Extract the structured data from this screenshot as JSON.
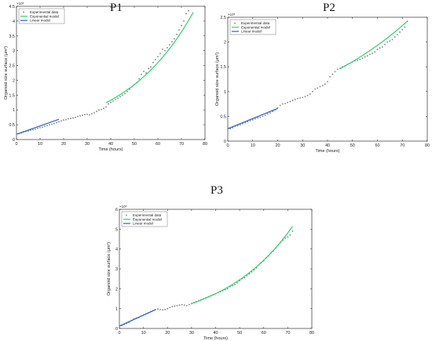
{
  "panels": [
    {
      "title": "P1"
    },
    {
      "title": "P2"
    },
    {
      "title": "P3"
    }
  ],
  "colors": {
    "experimental": "#7f7f7f",
    "exponential": "#2bd46b",
    "linear": "#2b5fd4"
  },
  "chart_data": [
    {
      "type": "scatter",
      "title": "P1",
      "xlabel": "Time (hours)",
      "ylabel": "Organoid size surface (μm²)",
      "y_exponent": "×10⁵",
      "xlim": [
        0,
        80
      ],
      "ylim": [
        0,
        4.5
      ],
      "xticks": [
        0,
        10,
        20,
        30,
        40,
        50,
        60,
        70,
        80
      ],
      "yticks": [
        0,
        0.5,
        1,
        1.5,
        2,
        2.5,
        3,
        3.5,
        4,
        4.5
      ],
      "legend": [
        "Experimental data",
        "Exponential model",
        "Linear model"
      ],
      "legend_position": "top-left",
      "series": [
        {
          "name": "Experimental data",
          "kind": "points",
          "x": [
            1,
            2,
            3,
            4,
            5,
            6,
            7,
            8,
            9,
            10,
            11,
            12,
            13,
            14,
            15,
            16,
            17,
            18,
            19,
            20,
            21,
            22,
            23,
            24,
            25,
            26,
            27,
            28,
            29,
            30,
            31,
            32,
            33,
            34,
            35,
            36,
            37,
            38,
            39,
            40,
            41,
            42,
            43,
            44,
            45,
            46,
            47,
            48,
            49,
            50,
            51,
            52,
            53,
            54,
            55,
            56,
            57,
            58,
            59,
            60,
            61,
            62,
            63,
            64,
            65,
            66,
            67,
            68,
            69,
            70,
            71,
            72,
            73
          ],
          "y": [
            0.2,
            0.22,
            0.25,
            0.27,
            0.29,
            0.31,
            0.33,
            0.35,
            0.38,
            0.4,
            0.42,
            0.45,
            0.47,
            0.5,
            0.52,
            0.55,
            0.57,
            0.6,
            0.63,
            0.66,
            0.67,
            0.7,
            0.71,
            0.73,
            0.75,
            0.78,
            0.8,
            0.82,
            0.84,
            0.85,
            0.83,
            0.87,
            0.9,
            0.95,
            1.0,
            1.02,
            1.05,
            1.1,
            1.2,
            1.25,
            1.3,
            1.35,
            1.4,
            1.45,
            1.5,
            1.55,
            1.62,
            1.7,
            1.78,
            1.85,
            1.92,
            2.05,
            2.2,
            2.3,
            2.25,
            2.4,
            2.45,
            2.6,
            2.7,
            2.8,
            2.9,
            3.05,
            3.0,
            3.1,
            3.2,
            3.3,
            3.4,
            3.55,
            3.7,
            3.85,
            4.0,
            4.25,
            4.35
          ]
        },
        {
          "name": "Exponential model",
          "kind": "exp",
          "x0": 38,
          "x1": 75,
          "a": 1.24,
          "b": 0.0336,
          "t0": 38
        },
        {
          "name": "Linear model",
          "kind": "linear",
          "x0": 0,
          "x1": 18,
          "a": 0.18,
          "b": 0.028
        }
      ]
    },
    {
      "type": "scatter",
      "title": "P2",
      "xlabel": "Time (hours)",
      "ylabel": "Organoid size surface (μm²)",
      "y_exponent": "×10⁵",
      "xlim": [
        0,
        80
      ],
      "ylim": [
        0,
        2.5
      ],
      "xticks": [
        0,
        10,
        20,
        30,
        40,
        50,
        60,
        70,
        80
      ],
      "yticks": [
        0,
        0.5,
        1,
        1.5,
        2,
        2.5
      ],
      "legend": [
        "Experimental data",
        "Exponential model",
        "Linear model"
      ],
      "legend_position": "top-left",
      "series": [
        {
          "name": "Experimental data",
          "kind": "points",
          "x": [
            1,
            2,
            3,
            4,
            5,
            6,
            7,
            8,
            9,
            10,
            11,
            12,
            13,
            14,
            15,
            16,
            17,
            18,
            19,
            20,
            21,
            22,
            23,
            24,
            25,
            26,
            27,
            28,
            29,
            30,
            31,
            32,
            33,
            34,
            35,
            36,
            37,
            38,
            39,
            40,
            41,
            42,
            43,
            44,
            45,
            46,
            47,
            48,
            49,
            50,
            51,
            52,
            53,
            54,
            55,
            56,
            57,
            58,
            59,
            60,
            61,
            62,
            63,
            64,
            65,
            66,
            67,
            68,
            69,
            70,
            71,
            72
          ],
          "y": [
            0.25,
            0.27,
            0.3,
            0.31,
            0.33,
            0.35,
            0.37,
            0.39,
            0.41,
            0.43,
            0.45,
            0.47,
            0.48,
            0.5,
            0.52,
            0.55,
            0.57,
            0.6,
            0.63,
            0.67,
            0.72,
            0.75,
            0.76,
            0.78,
            0.8,
            0.82,
            0.84,
            0.86,
            0.87,
            0.88,
            0.9,
            0.92,
            0.95,
            1.0,
            1.05,
            1.07,
            1.1,
            1.12,
            1.15,
            1.2,
            1.3,
            1.35,
            1.4,
            1.45,
            1.47,
            1.5,
            1.52,
            1.55,
            1.57,
            1.6,
            1.62,
            1.63,
            1.65,
            1.67,
            1.7,
            1.72,
            1.75,
            1.77,
            1.8,
            1.85,
            1.88,
            1.9,
            1.95,
            2.0,
            2.02,
            2.05,
            2.1,
            2.15,
            2.2,
            2.25,
            2.3,
            2.42
          ]
        },
        {
          "name": "Exponential model",
          "kind": "exp",
          "x0": 45,
          "x1": 72,
          "a": 1.46,
          "b": 0.0187,
          "t0": 45
        },
        {
          "name": "Linear model",
          "kind": "linear",
          "x0": 0,
          "x1": 20,
          "a": 0.25,
          "b": 0.0205
        }
      ]
    },
    {
      "type": "scatter",
      "title": "P3",
      "xlabel": "Time (hours)",
      "ylabel": "Organoid size surface (μm²)",
      "y_exponent": "×10⁵",
      "xlim": [
        0,
        80
      ],
      "ylim": [
        0,
        6
      ],
      "xticks": [
        0,
        10,
        20,
        30,
        40,
        50,
        60,
        70,
        80
      ],
      "yticks": [
        0,
        1,
        2,
        3,
        4,
        5,
        6
      ],
      "legend": [
        "Experimental data",
        "Exponential model",
        "Linear model"
      ],
      "legend_position": "top-left",
      "series": [
        {
          "name": "Experimental data",
          "kind": "points",
          "x": [
            1,
            2,
            3,
            4,
            5,
            6,
            7,
            8,
            9,
            10,
            11,
            12,
            13,
            14,
            15,
            16,
            17,
            18,
            19,
            20,
            21,
            22,
            23,
            24,
            25,
            26,
            27,
            28,
            29,
            30,
            31,
            32,
            33,
            34,
            35,
            36,
            37,
            38,
            39,
            40,
            41,
            42,
            43,
            44,
            45,
            46,
            47,
            48,
            49,
            50,
            51,
            52,
            53,
            54,
            55,
            56,
            57,
            58,
            59,
            60,
            61,
            62,
            63,
            64,
            65,
            66,
            67,
            68,
            69,
            70,
            71,
            72
          ],
          "y": [
            0.15,
            0.2,
            0.25,
            0.3,
            0.4,
            0.48,
            0.52,
            0.55,
            0.62,
            0.68,
            0.73,
            0.78,
            0.85,
            0.9,
            0.95,
            0.98,
            0.95,
            0.93,
            0.95,
            1.0,
            1.05,
            1.1,
            1.12,
            1.15,
            1.18,
            1.2,
            1.18,
            1.15,
            1.2,
            1.25,
            1.3,
            1.35,
            1.4,
            1.45,
            1.5,
            1.55,
            1.6,
            1.65,
            1.7,
            1.75,
            1.8,
            1.85,
            1.9,
            1.95,
            2.0,
            2.1,
            2.15,
            2.2,
            2.3,
            2.4,
            2.5,
            2.55,
            2.65,
            2.75,
            2.85,
            2.95,
            3.05,
            3.2,
            3.3,
            3.4,
            3.55,
            3.65,
            3.8,
            3.9,
            4.05,
            4.2,
            4.35,
            4.45,
            4.55,
            4.6,
            4.7,
            4.9
          ]
        },
        {
          "name": "Exponential model",
          "kind": "exp",
          "x0": 30,
          "x1": 72,
          "a": 1.25,
          "b": 0.0337,
          "t0": 30
        },
        {
          "name": "Linear model",
          "kind": "linear",
          "x0": 0,
          "x1": 15,
          "a": 0.12,
          "b": 0.055
        }
      ]
    }
  ]
}
